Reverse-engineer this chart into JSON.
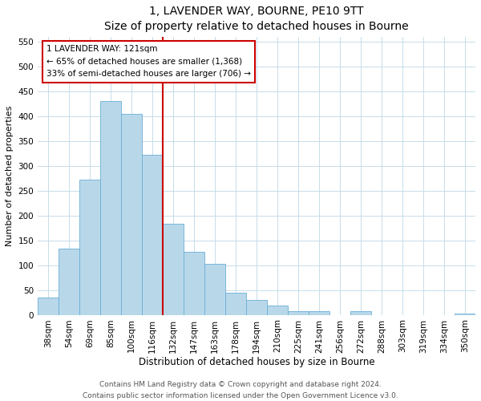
{
  "title": "1, LAVENDER WAY, BOURNE, PE10 9TT",
  "subtitle": "Size of property relative to detached houses in Bourne",
  "xlabel": "Distribution of detached houses by size in Bourne",
  "ylabel": "Number of detached properties",
  "bar_labels": [
    "38sqm",
    "54sqm",
    "69sqm",
    "85sqm",
    "100sqm",
    "116sqm",
    "132sqm",
    "147sqm",
    "163sqm",
    "178sqm",
    "194sqm",
    "210sqm",
    "225sqm",
    "241sqm",
    "256sqm",
    "272sqm",
    "288sqm",
    "303sqm",
    "319sqm",
    "334sqm",
    "350sqm"
  ],
  "bar_heights": [
    35,
    133,
    272,
    430,
    405,
    323,
    184,
    127,
    102,
    45,
    30,
    18,
    8,
    8,
    0,
    7,
    0,
    0,
    0,
    0,
    3
  ],
  "bar_color": "#b8d8ea",
  "bar_edge_color": "#6aaed6",
  "vline_x_idx": 5,
  "vline_color": "#cc0000",
  "annotation_title": "1 LAVENDER WAY: 121sqm",
  "annotation_line1": "← 65% of detached houses are smaller (1,368)",
  "annotation_line2": "33% of semi-detached houses are larger (706) →",
  "box_facecolor": "#ffffff",
  "box_edgecolor": "#cc0000",
  "ylim": [
    0,
    560
  ],
  "yticks": [
    0,
    50,
    100,
    150,
    200,
    250,
    300,
    350,
    400,
    450,
    500,
    550
  ],
  "footnote1": "Contains HM Land Registry data © Crown copyright and database right 2024.",
  "footnote2": "Contains public sector information licensed under the Open Government Licence v3.0.",
  "figsize": [
    6.0,
    5.0
  ],
  "dpi": 100,
  "grid_color": "#c8dcea",
  "title_fontsize": 10,
  "subtitle_fontsize": 9,
  "axis_label_fontsize": 8,
  "tick_fontsize": 7.5,
  "footnote_fontsize": 6.5
}
